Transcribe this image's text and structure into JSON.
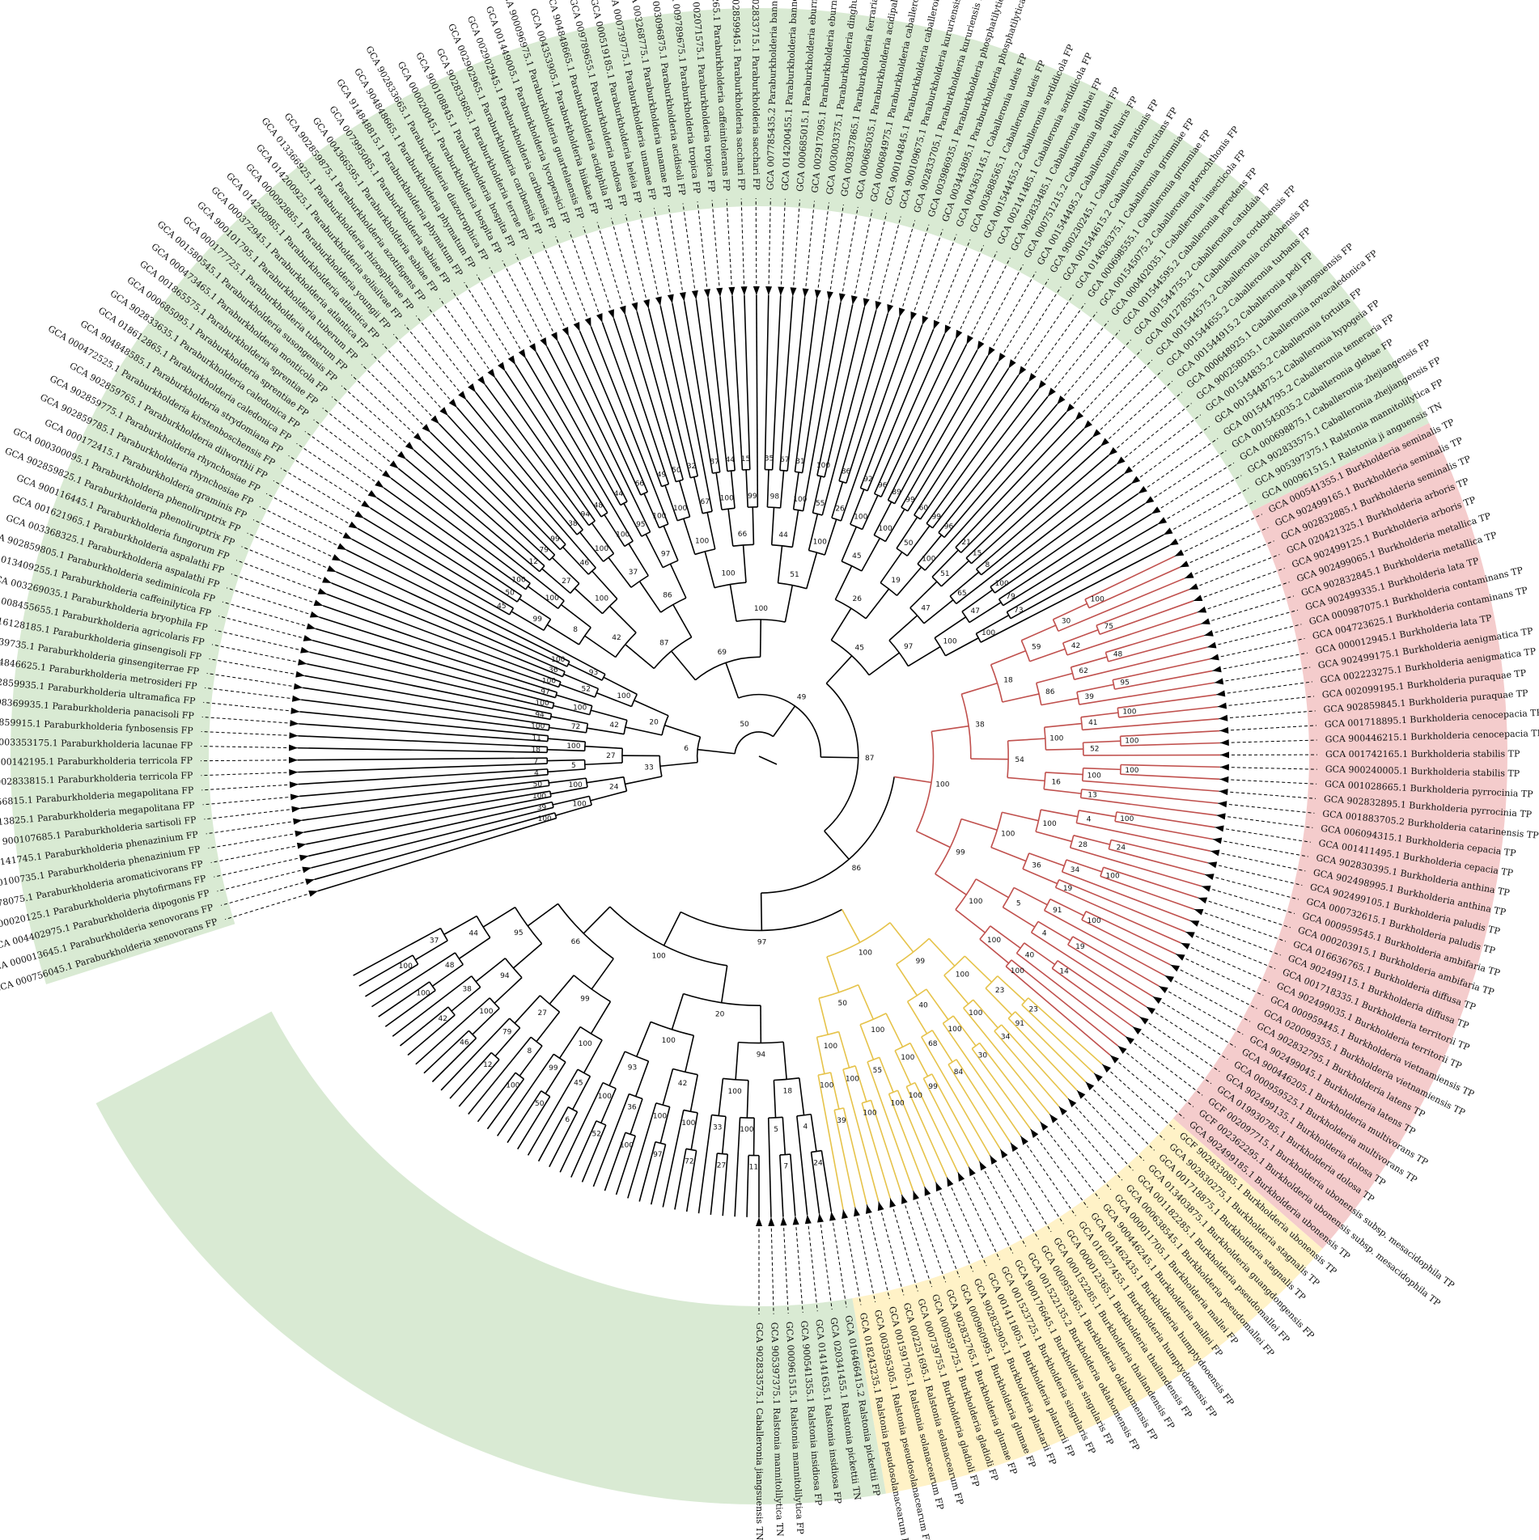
{
  "colors": {
    "green_sector": "#d9ead3",
    "red_sector": "#f4cccc",
    "yellow_sector": "#fff2c7",
    "black_branch": "#000000",
    "red_branch": "#c0504d",
    "yellow_branch": "#e6c34a"
  },
  "clade_sectors": [
    {
      "name": "green-sector-paraburkholderia",
      "color": "green",
      "from": 0,
      "to": 113
    },
    {
      "name": "red-sector-burkholderia",
      "color": "red",
      "from": 114,
      "to": 158
    },
    {
      "name": "yellow-sector-pseudomallei-group",
      "color": "yellow",
      "from": 159,
      "to": 184
    },
    {
      "name": "green-sector-ralstonia-caballeronia",
      "color": "green",
      "from": 185,
      "to": 232
    }
  ],
  "leaves": [
    "GCA 000756045.1 Paraburkholderia xenovorans FP",
    "GCA 000013645.1 Paraburkholderia xenovorans FP",
    "GCA 004402975.1 Paraburkholderia dipogonis FP",
    "GCA 000020125.1 Paraburkholderia phytofirmans FP",
    "GCA 002278075.1 Paraburkholderia aromaticivorans FP",
    "GCA 900100735.1 Paraburkholderia phenazinium FP",
    "GCA 900141745.1 Paraburkholderia phenazinium FP",
    "GCA 900107685.1 Paraburkholderia sartisoli FP",
    "GCA 900113825.1 Paraburkholderia megapolitana FP",
    "GCA 007556815.1 Paraburkholderia megapolitana FP",
    "GCA 902833815.1 Paraburkholderia terricola FP",
    "GCA 900142195.1 Paraburkholderia terricola FP",
    "GCA 003353175.1 Paraburkholderia lacunae FP",
    "GCA 902859915.1 Paraburkholderia fynbosensis FP",
    "GCA 008369935.1 Paraburkholderia panacisoli FP",
    "GCA 902859935.1 Paraburkholderia ultramafica FP",
    "GCA 904846625.1 Paraburkholderia metrosideri FP",
    "GCA 000739735.1 Paraburkholderia ginsengiterrae FP",
    "GCA 016128185.1 Paraburkholderia ginsengisoli FP",
    "GCA 008455655.1 Paraburkholderia agricolaris FP",
    "GCA 003269035.1 Paraburkholderia bryophila FP",
    "GCA 013409255.1 Paraburkholderia caffeinilytica FP",
    "GCA 902859805.1 Paraburkholderia sediminicola FP",
    "GCA 003368325.1 Paraburkholderia aspalathi FP",
    "GCA 001621965.1 Paraburkholderia aspalathi FP",
    "GCA 900116445.1 Paraburkholderia fungorum FP",
    "GCA 902859825.1 Paraburkholderia phenoliruptrix FP",
    "GCA 000300095.1 Paraburkholderia phenoliruptrix FP",
    "GCA 000172415.1 Paraburkholderia graminis FP",
    "GCA 902859785.1 Paraburkholderia rhynchosiae FP",
    "GCA 902859775.1 Paraburkholderia rhynchosiae FP",
    "GCA 902859765.1 Paraburkholderia dilworthii FP",
    "GCA 000472525.1 Paraburkholderia kirstenboschensis FP",
    "GCA 904848585.1 Paraburkholderia strydomiana FP",
    "GCA 018612865.1 Paraburkholderia caledonica FP",
    "GCA 902833635.1 Paraburkholderia caledonica FP",
    "GCA 000685095.1 Paraburkholderia sprentiae FP",
    "GCA 001865575.1 Paraburkholderia sprentiae FP",
    "GCA 000473465.1 Paraburkholderia monticola FP",
    "GCA 001580545.1 Paraburkholderia susongensis FP",
    "GCA 000177725.1 Paraburkholderia tuberum FP",
    "GCA 900101795.1 Paraburkholderia tuberum FP",
    "GCA 000372945.1 Paraburkholderia atlantica FP",
    "GCA 014200985.1 Paraburkholderia atlantica FP",
    "GCA 000092885.1 Paraburkholderia youngii FP",
    "GCA 014200925.1 Paraburkholderia solisilvae FP",
    "GCA 013366925.1 Paraburkholderia rhizospharae FP",
    "GCA 902859875.1 Paraburkholderia azotifigens FP",
    "GCA 004366595.1 Paraburkholderia sabiae FP",
    "GCA 007995085.1 Paraburkholderia sabiae FP",
    "GCA 914848815.1 Paraburkholderia phymatum FP",
    "GCA 904848665.1 Paraburkholderia phymatum FP",
    "GCA 902833665.1 Paraburkholderia diazotrophica FP",
    "GCA 000020045.1 Paraburkholderia hospita FP",
    "GCA 900108845.1 Paraburkholderia hospita FP",
    "GCA 902833685.1 Paraburkholderia terrae FP",
    "GCA 002902965.1 Paraburkholderia caribensis FP",
    "GCA 002902945.1 Paraburkholderia caribensis FP",
    "GCA 001449005.1 Paraburkholderia lycopersici FP",
    "GCA 900096975.1 Paraburkholderia guartelaensis FP",
    "GCA 004353905.1 Paraburkholderia hiiakae FP",
    "GCA 904848665.1 Paraburkholderia acidiphila FP",
    "GCA 009789655.1 Paraburkholderia nodosa FP",
    "GCA 000519185.1 Paraburkholderia heleia FP",
    "GCA 000739775.1 Paraburkholderia unamae FP",
    "GCA 003268775.1 Paraburkholderia unamae FP",
    "GCA 003096875.1 Paraburkholderia acidisoli FP",
    "GCA 009789675.1 Paraburkholderia tropica FP",
    "GCA 002071575.1 Paraburkholderia tropica FP",
    "GCA 900109265.1 Paraburkholderia caffeinitolerans FP",
    "GCA 902859945.1 Paraburkholderia sacchari FP",
    "GCA 902833715.1 Paraburkholderia sacchari FP",
    "GCA 007785435.2 Paraburkholderia bannensis FP",
    "GCA 014200455.1 Paraburkholderia bannensis FP",
    "GCA 000685015.1 Paraburkholderia eburnea FP",
    "GCA 002917095.1 Paraburkholderia eburnea FP",
    "GCA 003003375.1 Paraburkholderia dinghuensis FP",
    "GCA 003837865.1 Paraburkholderia ferrariae FP",
    "GCA 000685035.1 Paraburkholderia acidipaludis FP",
    "GCA 000684975.1 Paraburkholderia caballeronis FP",
    "GCA 900104845.1 Paraburkholderia caballeronis FP",
    "GCA 900109675.1 Paraburkholderia kururiensis FP",
    "GCA 902833705.1 Paraburkholderia kururiensis FP",
    "GCA 003986935.1 Paraburkholderia phosphatilytica FP",
    "GCA 003443895.1 Paraburkholderia phosphatilytica FP",
    "GCA 004363145.1 Caballeronia udeis FP",
    "GCA 003688565.1 Caballeronia udeis FP",
    "GCA 001544455.2 Caballeronia sordidicola FP",
    "GCA 002141485.1 Caballeronia sordidicola FP",
    "GCA 902833485.1 Caballeronia glathei FP",
    "GCA 000751215.2 Caballeronia glathei FP",
    "GCA 001544495.2 Caballeronia telluris FP",
    "GCA 900230245.1 Caballeronia arationis FP",
    "GCA 001544615.2 Caballeronia concitans FP",
    "GCA 014636375.1 Caballeronia grimmiae FP",
    "GCA 000698555.1 Caballeronia grimmiae FP",
    "GCA 001545075.2 Caballeronia pterochthonis FP",
    "GCA 000402035.1 Caballeronia insecticola FP",
    "GCA 001544595.2 Caballeronia peredens FP",
    "GCA 001544755.2 Caballeronia catudaia FP",
    "GCA 001278535.1 Caballeronia cordobensis FP",
    "GCA 001544575.2 Caballeronia cordobensis FP",
    "GCA 001544655.2 Caballeronia turbans FP",
    "GCA 001544915.2 Caballeronia pedi FP",
    "GCA 000648925.1 Caballeronia jiangsuensis FP",
    "GCA 900258035.1 Caballeronia novacaledonica FP",
    "GCA 001544835.2 Caballeronia fortuita FP",
    "GCA 001544875.2 Caballeronia hypogeia FP",
    "GCA 001544795.2 Caballeronia temeraria FP",
    "GCA 001545035.2 Caballeronia glebae FP",
    "GCA 000698875.1 Caballeronia zhejiangensis FP",
    "GCA 902833575.1 Caballeronia zhejiangensis FP",
    "GCA 905397375.1 Ralstonia mannitolilytica FP",
    "GCA 000961515.1 Ralstonia ji anguensis TN",
    "GCA 000541355.1 Burkholderia seminalis TP",
    "GCA 902499165.1 Burkholderia seminalis TP",
    "GCA 902832885.1 Burkholderia seminalis TP",
    "GCA 020421325.1 Burkholderia arboris TP",
    "GCA 902499125.1 Burkholderia arboris TP",
    "GCA 902499065.1 Burkholderia metallica TP",
    "GCA 902832845.1 Burkholderia metallica TP",
    "GCA 902499335.1 Burkholderia lata TP",
    "GCA 000987075.1 Burkholderia contaminans TP",
    "GCA 004723625.1 Burkholderia contaminans TP",
    "GCA 000012945.1 Burkholderia lata TP",
    "GCA 902499175.1 Burkholderia aenigmatica TP",
    "GCA 002223275.1 Burkholderia aenigmatica TP",
    "GCA 002099195.1 Burkholderia puraquae TP",
    "GCA 902859845.1 Burkholderia puraquae TP",
    "GCA 001718895.1 Burkholderia cenocepacia TP",
    "GCA 900446215.1 Burkholderia cenocepacia TP",
    "GCA 001742165.1 Burkholderia stabilis TP",
    "GCA 900240005.1 Burkholderia stabilis TP",
    "GCA 001028665.1 Burkholderia pyrrocinia TP",
    "GCA 902832895.1 Burkholderia pyrrocinia TP",
    "GCA 001883705.2 Burkholderia catarinensis TP",
    "GCA 006094315.1 Burkholderia cepacia TP",
    "GCA 001411495.1 Burkholderia cepacia TP",
    "GCA 902830395.1 Burkholderia anthina TP",
    "GCA 902498995.1 Burkholderia anthina TP",
    "GCA 902499105.1 Burkholderia paludis TP",
    "GCA 000732615.1 Burkholderia paludis TP",
    "GCA 000959545.1 Burkholderia ambifaria TP",
    "GCA 000203915.1 Burkholderia ambifaria TP",
    "GCA 016636765.1 Burkholderia diffusa TP",
    "GCA 902499115.1 Burkholderia diffusa TP",
    "GCA 001718335.1 Burkholderia territorii TP",
    "GCA 902499035.1 Burkholderia territorii TP",
    "GCA 000959445.1 Burkholderia vietnamiensis TP",
    "GCA 020099355.1 Burkholderia vietnamiensis TP",
    "GCA 902832795.1 Burkholderia latens TP",
    "GCA 902499045.1 Burkholderia latens TP",
    "GCA 900446205.1 Burkholderia multivorans TP",
    "GCA 000959525.1 Burkholderia multivorans TP",
    "GCA 902499135.1 Burkholderia dolosa TP",
    "GCA 019930785.1 Burkholderia dolosa TP",
    "GCF 002097715.1 Burkholderia ubonensis subsp. mesacidophila TP",
    "GCF 002362295.1 Burkholderia ubonensis subsp. mesacidophila TP",
    "GCA 902499185.1 Burkholderia ubonensis TP",
    "GCF 902833085.1 Burkholderia ubonensis TP",
    "GCA 902830275.1 Burkholderia stagnalis TP",
    "GCA 001718875.1 Burkholderia stagnalis TP",
    "GCA 013403875.1 Burkholderia guangdongensis FP",
    "GCA 001182285.1 Burkholderia pseudomallei FP",
    "GCA 000638545.1 Burkholderia pseudomallei FP",
    "GCA 000011705.1 Burkholderia mallei FP",
    "GCA 900446245.1 Burkholderia mallei FP",
    "GCA 001462435.1 Burkholderia humptydooensis FP",
    "GCA 016027455.1 Burkholderia humptydooensis FP",
    "GCA 000012365.1 Burkholderia thailandensis FP",
    "GCA 000152285.1 Burkholderia thailandensis FP",
    "GCA 000959365.1 Burkholderia oklahomensis FP",
    "GCA 001522135.2 Burkholderia oklahomensis FP",
    "GCA 900176645.1 Burkholderia singularis FP",
    "GCA 001523725.1 Burkholderia singularis FP",
    "GCA 001411805.1 Burkholderia plantarii FP",
    "GCA 902832905.1 Burkholderia plantarii FP",
    "GCA 000960995.1 Burkholderia glumae FP",
    "GCA 902832765.1 Burkholderia glumae FP",
    "GCA 000959725.1 Burkholderia gladioli FP",
    "GCA 000739755.1 Burkholderia gladioli FP",
    "GCA 002251695.1 Ralstonia solanacearum FP",
    "GCA 001591705.1 Ralstonia solanacearum FP",
    "GCA 003595305.1 Ralstonia pseudosolanacearum FP",
    "GCA 018243235.1 Ralstonia pseudosolanacearum FP",
    "GCA 016466415.2 Ralstonia pickettii FP",
    "GCA 020341455.1 Ralstonia pickettii TN",
    "GCA 014141635.1 Ralstonia insidiosa FP",
    "GCA 900541355.1 Ralstonia insidiosa FP",
    "GCA 000961515.1 Ralstonia mannitolilytica FP",
    "GCA 905397375.1 Ralstonia mannitolilytica TN",
    "GCA 902833575.1 Caballeronia jiangsuensis TN"
  ],
  "bootstrap_values": [
    "100",
    "39",
    "100",
    "100",
    "50",
    "100",
    "24",
    "4",
    "7",
    "5",
    "18",
    "11",
    "100",
    "27",
    "33",
    "100",
    "94",
    "72",
    "100",
    "97",
    "100",
    "42",
    "100",
    "36",
    "52",
    "100",
    "93",
    "100",
    "20",
    "6",
    "45",
    "50",
    "99",
    "100",
    "100",
    "8",
    "12",
    "79",
    "27",
    "99",
    "46",
    "100",
    "42",
    "38",
    "94",
    "100",
    "48",
    "100",
    "37",
    "44",
    "95",
    "66",
    "100",
    "97",
    "86",
    "87",
    "49",
    "50",
    "100",
    "32",
    "67",
    "100",
    "87",
    "44",
    "100",
    "15",
    "99",
    "66",
    "100",
    "35",
    "67",
    "98",
    "31",
    "100",
    "44",
    "100",
    "55",
    "86",
    "26",
    "100",
    "51",
    "100",
    "69",
    "92",
    "96",
    "100",
    "89",
    "99",
    "100",
    "45",
    "60",
    "99",
    "50",
    "96",
    "100",
    "19",
    "26",
    "21",
    "15",
    "51",
    "8",
    "65",
    "47",
    "100",
    "79",
    "47",
    "73",
    "100",
    "100",
    "97",
    "45",
    "100",
    "30",
    "75",
    "42",
    "59",
    "48",
    "62",
    "95",
    "39",
    "86",
    "18",
    "100",
    "41",
    "100",
    "52",
    "100",
    "100",
    "100",
    "13",
    "16",
    "54",
    "38",
    "100",
    "4",
    "24",
    "28",
    "100",
    "100",
    "34",
    "19",
    "36",
    "100",
    "100",
    "91",
    "19",
    "4",
    "5",
    "14",
    "40",
    "100",
    "100",
    "100",
    "99",
    "100",
    "23",
    "91",
    "23",
    "34",
    "100",
    "100",
    "30",
    "100",
    "84",
    "68",
    "40",
    "99",
    "99",
    "100",
    "100",
    "100",
    "55",
    "100",
    "100"
  ]
}
